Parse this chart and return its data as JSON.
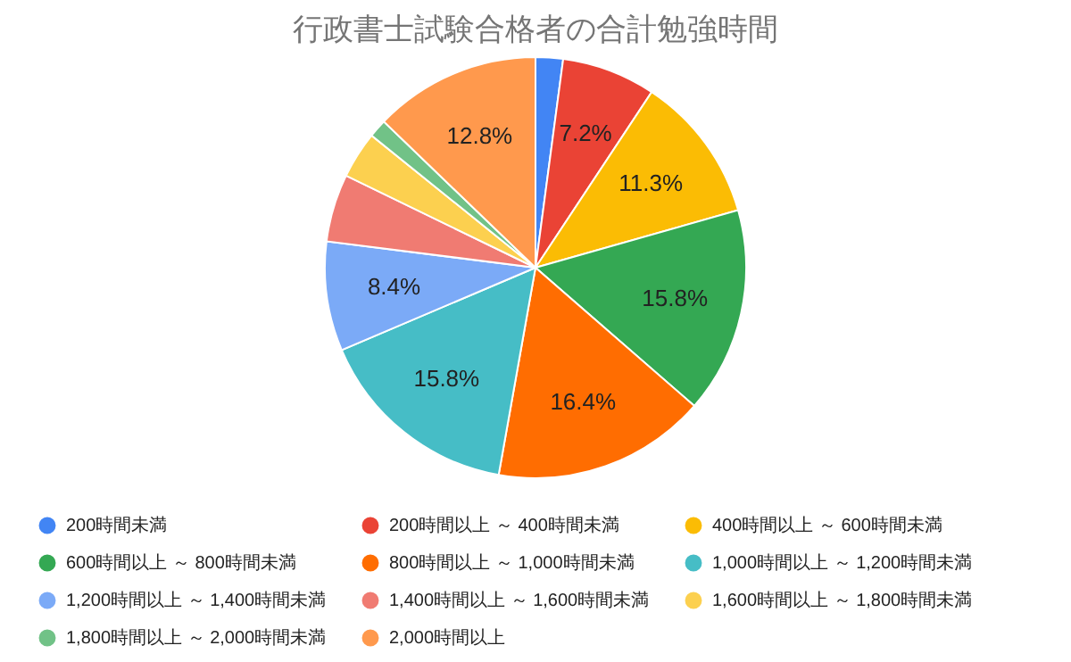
{
  "chart_data": {
    "type": "pie",
    "title": "行政書士試験合格者の合計勉強時間",
    "categories": [
      "200時間未満",
      "200時間以上 ～ 400時間未満",
      "400時間以上 ～ 600時間未満",
      "600時間以上 ～ 800時間未満",
      "800時間以上 ～ 1,000時間未満",
      "1,000時間以上 ～ 1,200時間未満",
      "1,200時間以上 ～ 1,400時間未満",
      "1,400時間以上 ～ 1,600時間未満",
      "1,600時間以上 ～ 1,800時間未満",
      "1,800時間以上 ～ 2,000時間未満",
      "2,000時間以上"
    ],
    "values": [
      2.1,
      7.2,
      11.3,
      15.8,
      16.4,
      15.8,
      8.4,
      5.2,
      3.6,
      1.4,
      12.8
    ],
    "value_labels": [
      null,
      "7.2%",
      "11.3%",
      "15.8%",
      "16.4%",
      "15.8%",
      "8.4%",
      null,
      null,
      null,
      "12.8%"
    ],
    "colors": [
      "#4285f4",
      "#ea4335",
      "#fbbc04",
      "#34a853",
      "#ff6d01",
      "#46bdc6",
      "#7baaf7",
      "#f07b72",
      "#fcd04f",
      "#71c287",
      "#ff994d"
    ],
    "legend": "bottom"
  }
}
